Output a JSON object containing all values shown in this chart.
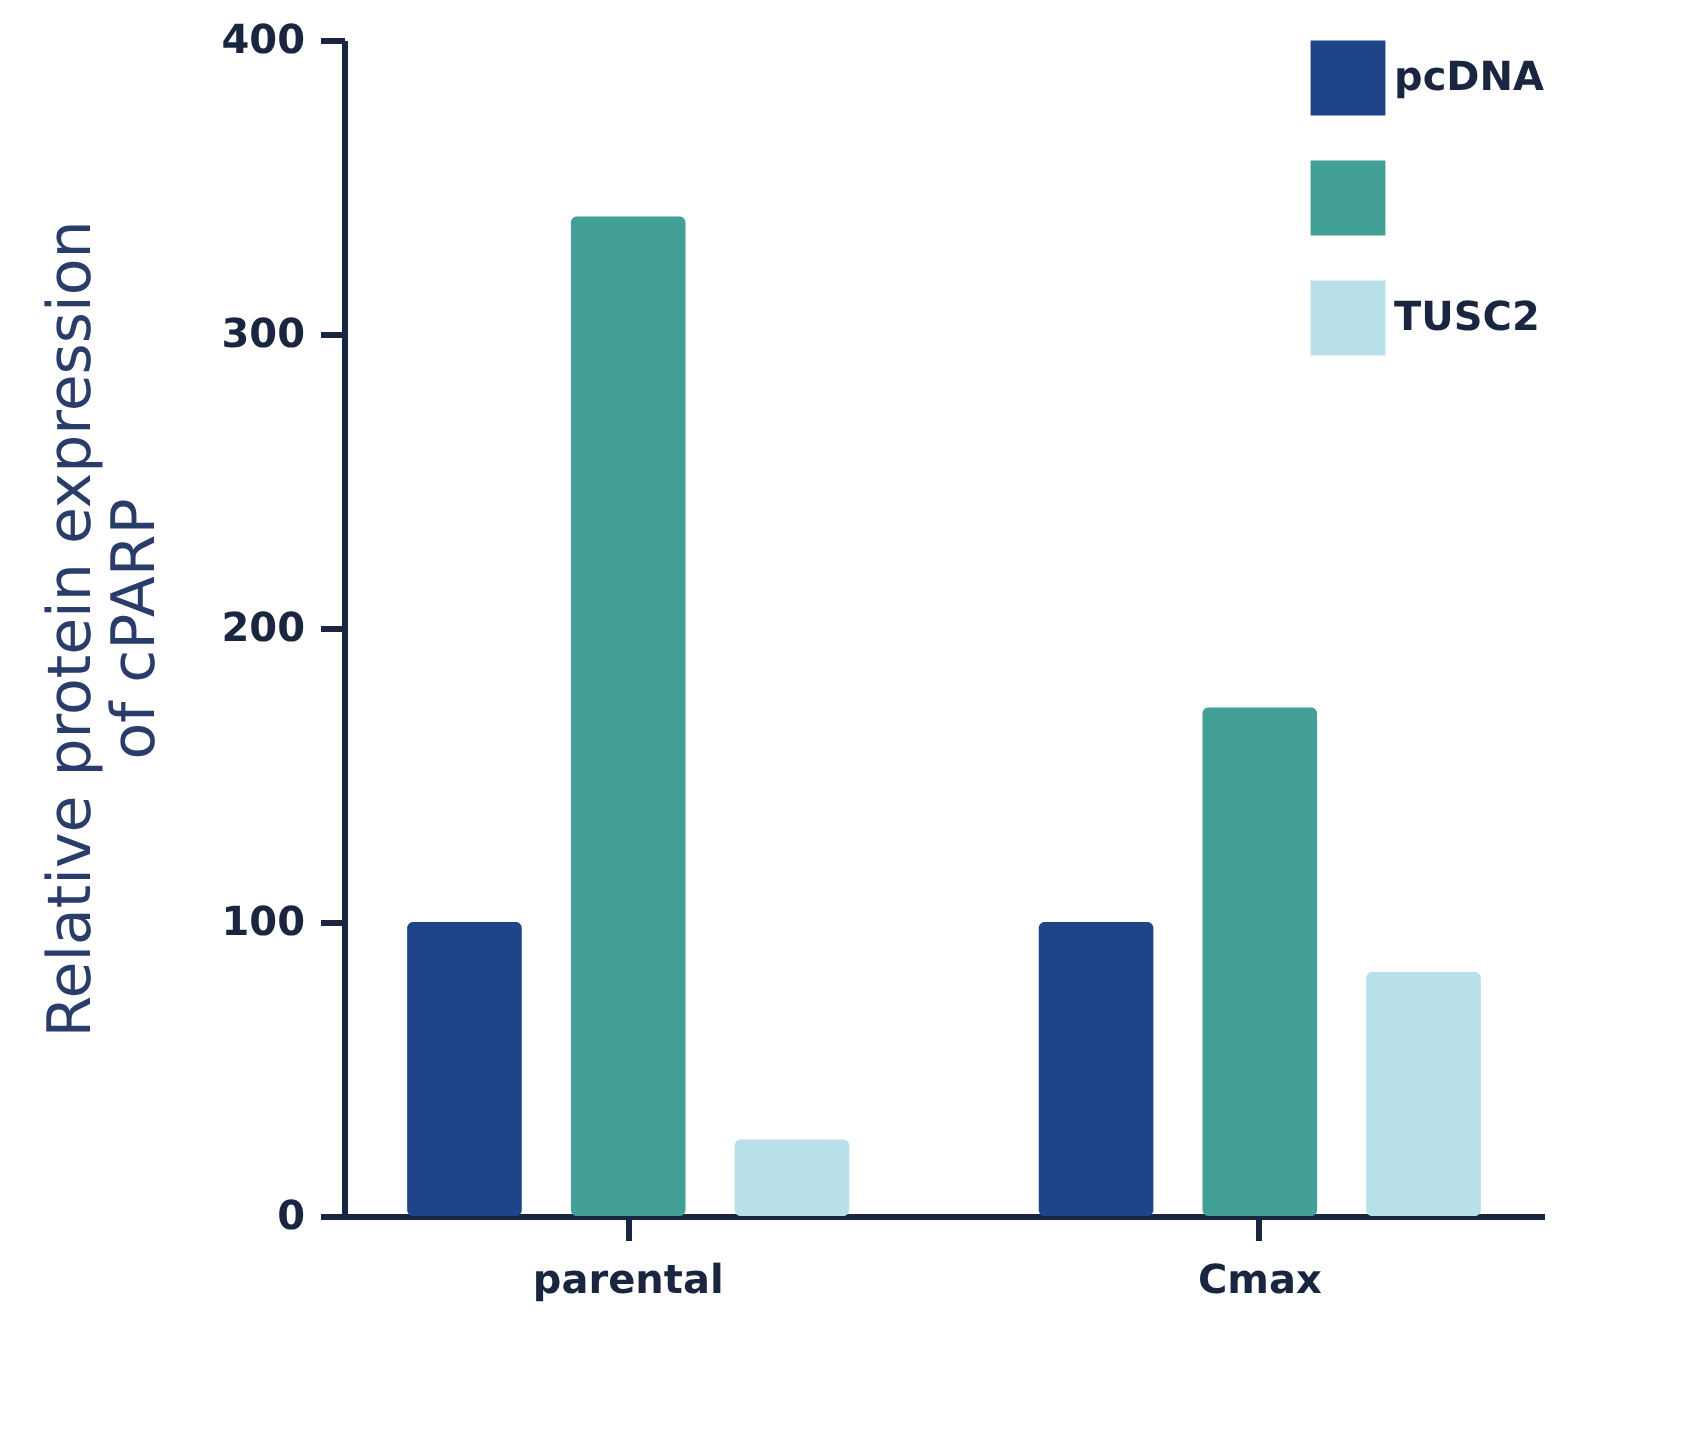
{
  "chart_data": {
    "type": "bar",
    "ylabel": "Relative protein expression\nof cPARP",
    "categories": [
      "parental",
      "Cmax"
    ],
    "series": [
      {
        "name": "pcDNA",
        "color": "#1f4588",
        "values": [
          100,
          100
        ]
      },
      {
        "color": "#43a096",
        "values": [
          340,
          173
        ]
      },
      {
        "name": "TUSC2",
        "color": "#b8e0ea",
        "values": [
          26,
          83
        ]
      }
    ],
    "ylim": [
      0,
      400
    ],
    "yticks": [
      0,
      100,
      200,
      300,
      400
    ],
    "grid": false,
    "legend": "top right"
  }
}
